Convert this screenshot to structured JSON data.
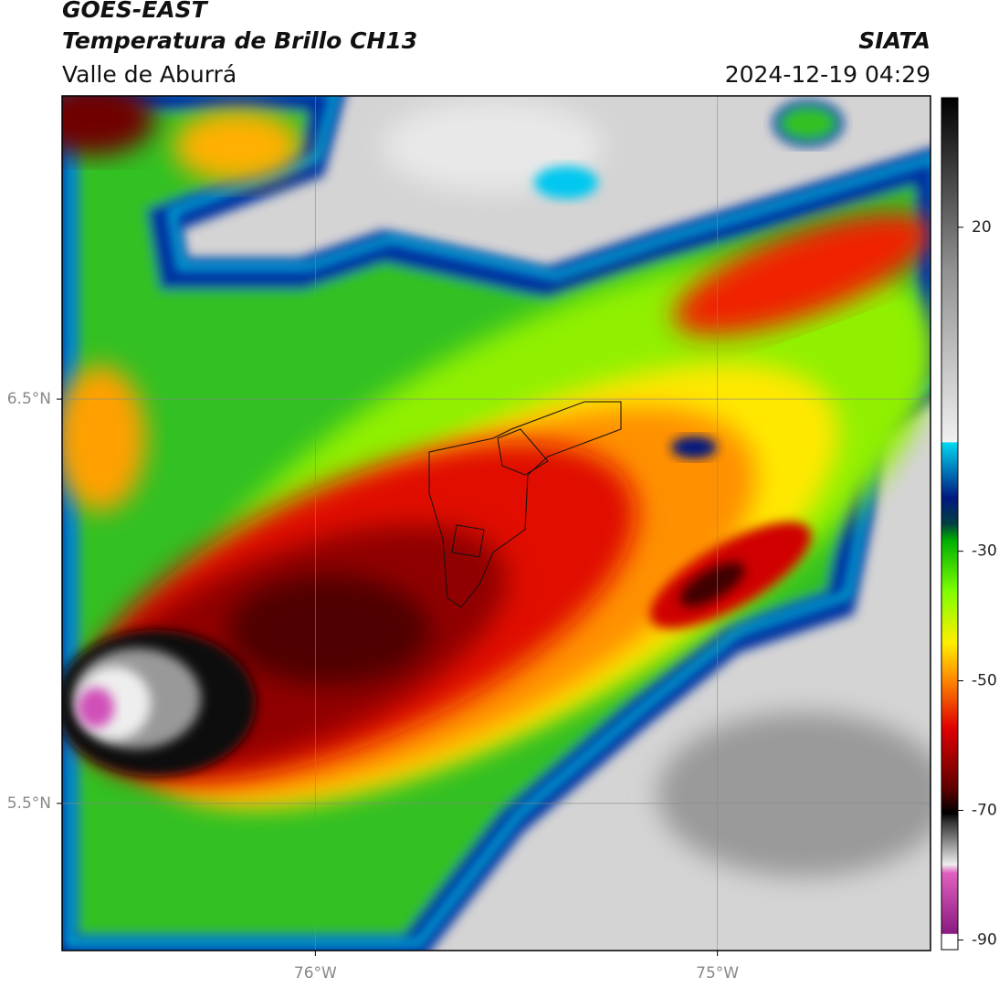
{
  "header": {
    "satellite": "GOES-EAST",
    "product": "Temperatura de Brillo CH13",
    "region": "Valle de Aburrá",
    "source": "SIATA",
    "datetime": "2024-12-19 04:29"
  },
  "map": {
    "lonlim": [
      -76.63,
      -74.47
    ],
    "latlim": [
      5.136,
      7.25
    ],
    "lonticks": [
      {
        "value": -76,
        "label": "76°W"
      },
      {
        "value": -75,
        "label": "75°W"
      }
    ],
    "latticks": [
      {
        "value": 6.5,
        "label": "6.5°N"
      },
      {
        "value": 5.5,
        "label": "5.5°N"
      }
    ]
  },
  "colorbar": {
    "lim": [
      -91.5,
      40
    ],
    "ticks": [
      20,
      -30,
      -50,
      -70,
      -90
    ]
  }
}
